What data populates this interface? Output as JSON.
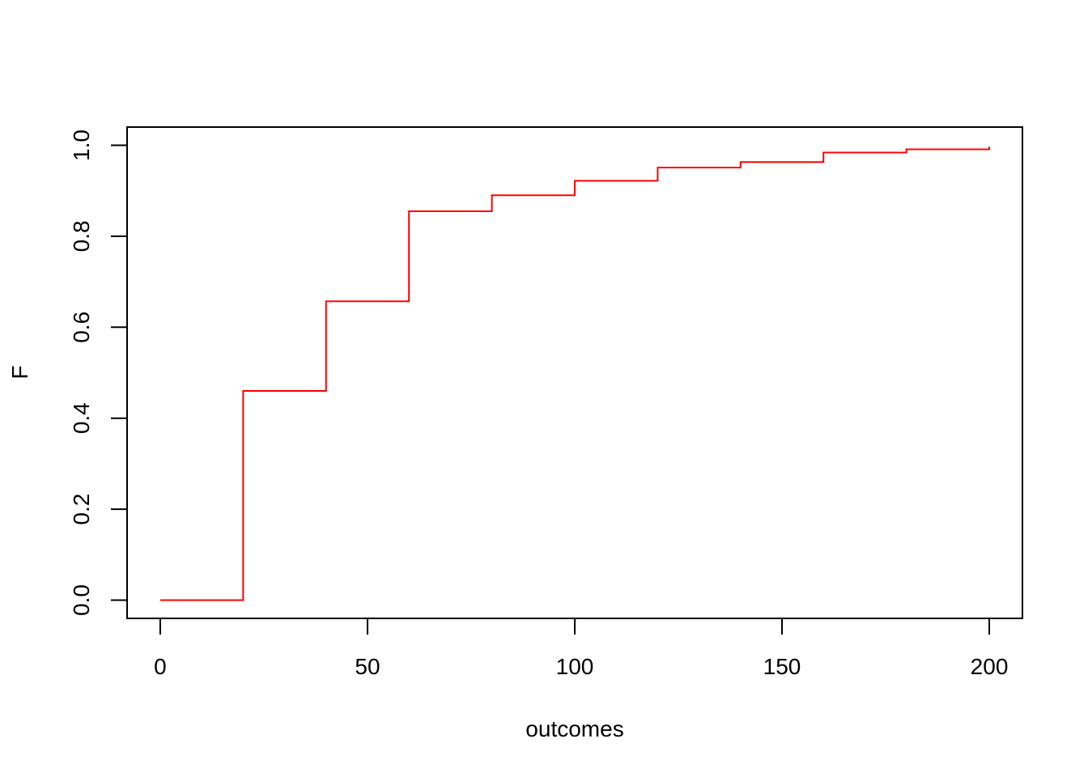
{
  "chart_data": {
    "type": "line",
    "step": true,
    "title": "",
    "xlabel": "outcomes",
    "ylabel": "F",
    "xlim": [
      -8,
      208
    ],
    "ylim": [
      -0.04,
      1.04
    ],
    "x_ticks": [
      0,
      50,
      100,
      150,
      200
    ],
    "x_tick_labels": [
      "0",
      "50",
      "100",
      "150",
      "200"
    ],
    "y_ticks": [
      0,
      0.2,
      0.4,
      0.6,
      0.8,
      1.0
    ],
    "y_tick_labels": [
      "0.0",
      "0.2",
      "0.4",
      "0.6",
      "0.8",
      "1.0"
    ],
    "grid": false,
    "line_color": "#ff0000",
    "series": [
      {
        "x": [
          0,
          20,
          40,
          60,
          80,
          100,
          120,
          140,
          160,
          180,
          200
        ],
        "values": [
          0.0,
          0.46,
          0.657,
          0.855,
          0.89,
          0.922,
          0.951,
          0.963,
          0.984,
          0.991,
          0.997
        ]
      }
    ]
  }
}
